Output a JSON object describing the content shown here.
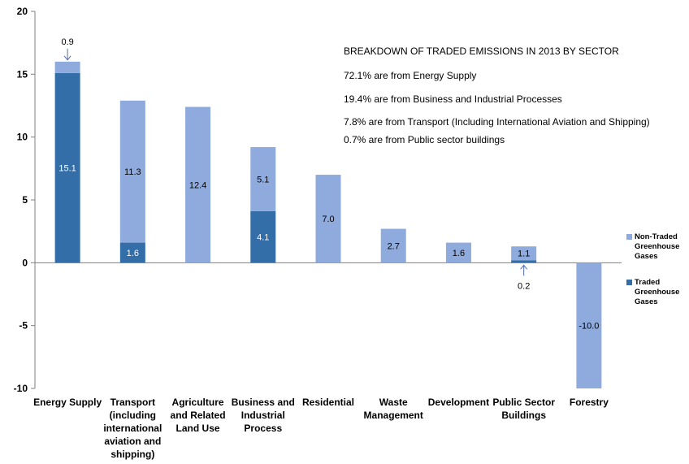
{
  "chart_data": {
    "type": "bar",
    "stacked": true,
    "categories": [
      [
        "Energy Supply"
      ],
      [
        "Transport",
        "(including",
        "international",
        "aviation and",
        "shipping)"
      ],
      [
        "Agriculture",
        "and Related",
        "Land Use"
      ],
      [
        "Business and",
        "Industrial",
        "Process"
      ],
      [
        "Residential"
      ],
      [
        "Waste",
        "Management"
      ],
      [
        "Development"
      ],
      [
        "Public Sector",
        "Buildings"
      ],
      [
        "Forestry"
      ]
    ],
    "series": [
      {
        "name": "Traded Greenhouse Gases",
        "legend_lines": [
          "Traded",
          "Greenhouse",
          "Gases"
        ],
        "color": "#336EA8",
        "values": [
          15.1,
          1.6,
          0,
          4.1,
          0,
          0,
          0,
          0.2,
          0
        ],
        "labels": [
          "15.1",
          "1.6",
          "",
          "4.1",
          "",
          "",
          "",
          "",
          ""
        ]
      },
      {
        "name": "Non-Traded Greenhouse Gases",
        "legend_lines": [
          "Non-Traded",
          "Greenhouse",
          "Gases"
        ],
        "color": "#8FAADC",
        "values": [
          0.9,
          11.3,
          12.4,
          5.1,
          7.0,
          2.7,
          1.6,
          1.1,
          -10.0
        ],
        "labels": [
          "",
          "11.3",
          "12.4",
          "5.1",
          "7.0",
          "2.7",
          "1.6",
          "1.1",
          "-10.0"
        ]
      }
    ],
    "callouts": [
      {
        "category": 0,
        "text": "0.9",
        "position": "above"
      },
      {
        "category": 7,
        "text": "0.2",
        "position": "below"
      }
    ],
    "ylim": [
      -10,
      20
    ],
    "yticks": [
      -10,
      -5,
      0,
      5,
      10,
      15,
      20
    ],
    "grid": false,
    "legend": "right"
  },
  "annotation": {
    "title": "BREAKDOWN OF TRADED EMISSIONS IN 2013 BY SECTOR",
    "lines": [
      "72.1% are from Energy Supply",
      "19.4% are from Business and Industrial Processes",
      "7.8% are from Transport (Including International Aviation and Shipping)",
      "0.7% are from Public sector buildings"
    ]
  }
}
